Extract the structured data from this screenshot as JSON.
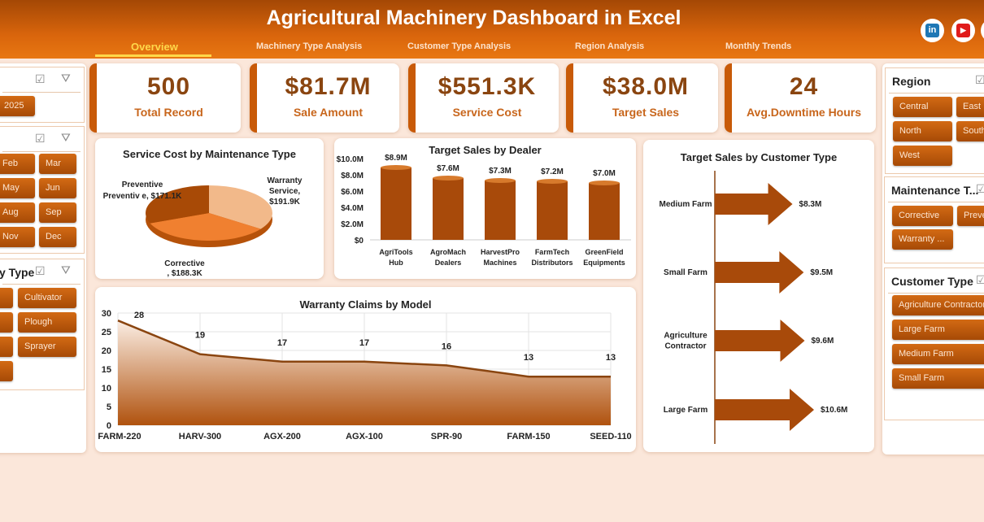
{
  "header": {
    "title": "Agricultural Machinery Dashboard in Excel",
    "tabs": [
      {
        "label": "Overview",
        "active": true
      },
      {
        "label": "Machinery Type Analysis"
      },
      {
        "label": "Customer Type Analysis"
      },
      {
        "label": "Region Analysis"
      },
      {
        "label": "Monthly Trends"
      }
    ],
    "social": [
      {
        "icon": "linkedin-icon",
        "label": "in",
        "color": "#1e77b5"
      },
      {
        "icon": "youtube-icon",
        "label": "▶",
        "color": "#e01b1b"
      }
    ]
  },
  "kpis": [
    {
      "value": "500",
      "label": "Total Record"
    },
    {
      "value": "$81.7M",
      "label": "Sale Amount"
    },
    {
      "value": "$551.3K",
      "label": "Service Cost"
    },
    {
      "value": "$38.0M",
      "label": "Target Sales"
    },
    {
      "value": "24",
      "label": "Avg.Downtime Hours"
    }
  ],
  "left_slicers": {
    "year": {
      "items": [
        "2025"
      ]
    },
    "month": {
      "items": [
        "Feb",
        "Mar",
        "May",
        "Jun",
        "Aug",
        "Sep",
        "Nov",
        "Dec"
      ]
    },
    "machinery": {
      "title": "y Type",
      "items": [
        "Cultivator",
        "Plough",
        "Sprayer"
      ]
    }
  },
  "right_slicers": {
    "region": {
      "title": "Region",
      "items": [
        "Central",
        "East",
        "North",
        "South",
        "West"
      ]
    },
    "maintenance": {
      "title": "Maintenance T...",
      "items": [
        "Corrective",
        "Preve",
        "Warranty ..."
      ]
    },
    "customer": {
      "title": "Customer Type",
      "items": [
        "Agriculture Contractor",
        "Large Farm",
        "Medium Farm",
        "Small Farm"
      ]
    }
  },
  "colors": {
    "accent": "#c85a08",
    "dark": "#8a4510",
    "background": "#fbe7da"
  },
  "chart_data": [
    {
      "type": "pie",
      "title": "Service Cost by Maintenance Type",
      "categories": [
        "Preventive",
        "Warranty Service",
        "Corrective"
      ],
      "values": [
        171.1,
        191.9,
        188.3
      ],
      "labels": [
        "Preventiv e, $171.1K",
        "Warranty Service, $191.9K",
        "Corrective , $188.3K"
      ],
      "colors": [
        "#a84a06",
        "#f2b98a",
        "#f08030"
      ]
    },
    {
      "type": "bar",
      "title": "Target Sales by Dealer",
      "categories": [
        "AgriTools Hub",
        "AgroMach Dealers",
        "HarvestPro Machines",
        "FarmTech Distributors",
        "GreenField Equipments"
      ],
      "values": [
        8.9,
        7.6,
        7.3,
        7.2,
        7.0
      ],
      "data_labels": [
        "$8.9M",
        "$7.6M",
        "$7.3M",
        "$7.2M",
        "$7.0M"
      ],
      "ylim": [
        0,
        10
      ],
      "yticks": [
        "$0",
        "$2.0M",
        "$4.0M",
        "$6.0M",
        "$8.0M",
        "$10.0M"
      ]
    },
    {
      "type": "bar",
      "orientation": "horizontal",
      "title": "Target Sales by Customer Type",
      "categories": [
        "Medium Farm",
        "Small Farm",
        "Agriculture Contractor",
        "Large Farm"
      ],
      "values": [
        8.3,
        9.5,
        9.6,
        10.6
      ],
      "data_labels": [
        "$8.3M",
        "$9.5M",
        "$9.6M",
        "$10.6M"
      ]
    },
    {
      "type": "area",
      "title": "Warranty Claims by Model",
      "categories": [
        "FARM-220",
        "HARV-300",
        "AGX-200",
        "AGX-100",
        "SPR-90",
        "FARM-150",
        "SEED-110"
      ],
      "values": [
        28,
        19,
        17,
        17,
        16,
        13,
        13
      ],
      "ylim": [
        0,
        30
      ],
      "yticks": [
        "0",
        "5",
        "10",
        "15",
        "20",
        "25",
        "30"
      ],
      "grid": true
    }
  ]
}
